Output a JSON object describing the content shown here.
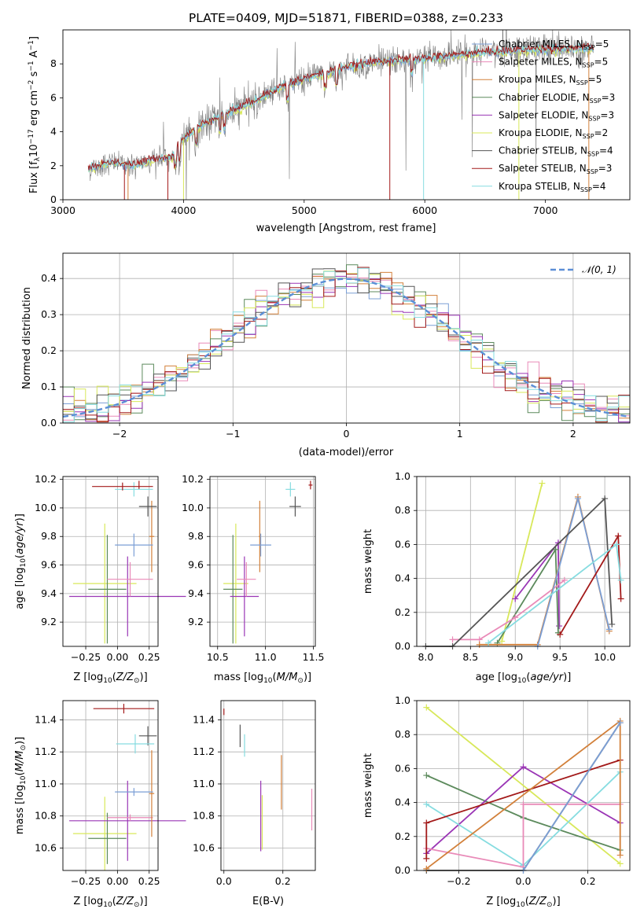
{
  "colors": {
    "Chabrier MILES": "#7b9fd6",
    "Salpeter MILES": "#e98ab8",
    "Kroupa MILES": "#d2803a",
    "Chabrier ELODIE": "#5c8a5c",
    "Salpeter ELODIE": "#9a35b5",
    "Kroupa ELODIE": "#d8e85a",
    "Chabrier STELIB": "#555555",
    "Salpeter STELIB": "#a31a1a",
    "Kroupa STELIB": "#86dce0",
    "gauss": "#5b8ed6",
    "observed": "#7a7a7a"
  },
  "chart_data": [
    {
      "id": "spectrum",
      "type": "line",
      "title": "PLATE=0409, MJD=51871, FIBERID=0388, z=0.233",
      "xlabel": "wavelength [Angstrom, rest frame]",
      "ylabel": "Flux [f$_\\lambda$10$^{-17}$ erg cm$^{-2}$ s$^{-1}$ A$^{-1}$]",
      "xlim": [
        3000,
        7700
      ],
      "ylim": [
        0,
        10
      ],
      "xticks": [
        "3000",
        "4000",
        "5000",
        "6000",
        "7000"
      ],
      "yticks": [
        "0",
        "2",
        "4",
        "6",
        "8"
      ],
      "grid": false,
      "legend_position": "top-right",
      "legend": [
        {
          "label": "Chabrier MILES, N",
          "sub": "SSP",
          "rest": "=5"
        },
        {
          "label": "Salpeter MILES, N",
          "sub": "SSP",
          "rest": "=5"
        },
        {
          "label": "Kroupa MILES, N",
          "sub": "SSP",
          "rest": "=5"
        },
        {
          "label": "Chabrier ELODIE, N",
          "sub": "SSP",
          "rest": "=3"
        },
        {
          "label": "Salpeter ELODIE, N",
          "sub": "SSP",
          "rest": "=3"
        },
        {
          "label": "Kroupa ELODIE, N",
          "sub": "SSP",
          "rest": "=2"
        },
        {
          "label": "Chabrier STELIB, N",
          "sub": "SSP",
          "rest": "=4"
        },
        {
          "label": "Salpeter STELIB, N",
          "sub": "SSP",
          "rest": "=3"
        },
        {
          "label": "Kroupa STELIB, N",
          "sub": "SSP",
          "rest": "=4"
        }
      ],
      "continuum": [
        [
          3210,
          1.8
        ],
        [
          3400,
          2.2
        ],
        [
          3600,
          2.0
        ],
        [
          3750,
          2.4
        ],
        [
          3900,
          2.5
        ],
        [
          4000,
          3.6
        ],
        [
          4200,
          4.6
        ],
        [
          4500,
          5.5
        ],
        [
          4800,
          6.6
        ],
        [
          5000,
          7.1
        ],
        [
          5300,
          7.7
        ],
        [
          5600,
          8.1
        ],
        [
          6000,
          8.3
        ],
        [
          6400,
          8.6
        ],
        [
          6800,
          8.8
        ],
        [
          7200,
          8.9
        ],
        [
          7400,
          8.9
        ]
      ]
    },
    {
      "id": "residuals",
      "type": "line",
      "xlabel": "(data-model)/error",
      "ylabel": "Normed distribution",
      "xlim": [
        -2.5,
        2.5
      ],
      "ylim": [
        0,
        0.47
      ],
      "xticks": [
        "−2",
        "−1",
        "0",
        "1",
        "2"
      ],
      "yticks": [
        "0.0",
        "0.1",
        "0.2",
        "0.3",
        "0.4"
      ],
      "grid": true,
      "legend_position": "top-right",
      "legend": [
        {
          "label": "$\\mathcal{N}(0,1)$",
          "display": "𝒩(0, 1)"
        }
      ],
      "bin_width": 0.1
    },
    {
      "id": "age_vs_Z",
      "type": "scatter",
      "xlabel": "Z [log$_{10}$(Z/Z$_\\odot$)]",
      "ylabel": "age  [log$_{10}$(age/yr)]",
      "xlim": [
        -0.43,
        0.32
      ],
      "ylim": [
        9.03,
        10.22
      ],
      "xticks": [
        "−0.25",
        "0.00",
        "0.25"
      ],
      "yticks": [
        "9.2",
        "9.4",
        "9.6",
        "9.8",
        "10.0",
        "10.2"
      ],
      "grid": true,
      "points": [
        {
          "model": "Kroupa ELODIE",
          "x": -0.1,
          "xerr": 0.25,
          "y": 9.47,
          "yerr": 0.42
        },
        {
          "model": "Chabrier ELODIE",
          "x": -0.08,
          "xerr": 0.15,
          "y": 9.43,
          "yerr": 0.38
        },
        {
          "model": "Salpeter ELODIE",
          "x": 0.08,
          "xerr": 0.46,
          "y": 9.38,
          "yerr": 0.28
        },
        {
          "model": "Salpeter MILES",
          "x": 0.1,
          "xerr": 0.18,
          "y": 9.5,
          "yerr": 0.12
        },
        {
          "model": "Kroupa MILES",
          "x": 0.27,
          "xerr": 0.02,
          "y": 9.8,
          "yerr": 0.25
        },
        {
          "model": "Chabrier MILES",
          "x": 0.13,
          "xerr": 0.15,
          "y": 9.74,
          "yerr": 0.08
        },
        {
          "model": "Chabrier STELIB",
          "x": 0.24,
          "xerr": 0.07,
          "y": 10.01,
          "yerr": 0.07
        },
        {
          "model": "Salpeter STELIB",
          "x": 0.17,
          "xerr": 0.0,
          "y": 10.16,
          "yerr": 0.03
        },
        {
          "model": "Kroupa STELIB",
          "x": 0.13,
          "xerr": 0.15,
          "y": 10.13,
          "yerr": 0.05
        },
        {
          "model": "Salpeter STELIB",
          "x": 0.04,
          "xerr": 0.24,
          "y": 10.15,
          "yerr": 0.0
        }
      ]
    },
    {
      "id": "age_vs_mass",
      "type": "scatter",
      "xlabel": "mass [log$_{10}$(M/M$_\\odot$)]",
      "ylabel": "",
      "xlim": [
        10.42,
        11.52
      ],
      "ylim": [
        9.03,
        10.22
      ],
      "xticks": [
        "10.5",
        "11.0",
        "11.5"
      ],
      "yticks": [
        "9.2",
        "9.4",
        "9.6",
        "9.8",
        "10.0",
        "10.2"
      ],
      "grid": true,
      "points": [
        {
          "model": "Kroupa ELODIE",
          "x": 10.69,
          "xerr": 0.13,
          "y": 9.47,
          "yerr": 0.42
        },
        {
          "model": "Chabrier ELODIE",
          "x": 10.66,
          "xerr": 0.1,
          "y": 9.43,
          "yerr": 0.38
        },
        {
          "model": "Salpeter ELODIE",
          "x": 10.78,
          "xerr": 0.15,
          "y": 9.38,
          "yerr": 0.28
        },
        {
          "model": "Salpeter MILES",
          "x": 10.8,
          "xerr": 0.1,
          "y": 9.5,
          "yerr": 0.12
        },
        {
          "model": "Kroupa MILES",
          "x": 10.94,
          "xerr": 0.01,
          "y": 9.8,
          "yerr": 0.25
        },
        {
          "model": "Chabrier MILES",
          "x": 10.95,
          "xerr": 0.11,
          "y": 9.74,
          "yerr": 0.08
        },
        {
          "model": "Chabrier STELIB",
          "x": 11.31,
          "xerr": 0.06,
          "y": 10.01,
          "yerr": 0.07
        },
        {
          "model": "Salpeter STELIB",
          "x": 11.47,
          "xerr": 0.02,
          "y": 10.16,
          "yerr": 0.03
        },
        {
          "model": "Kroupa STELIB",
          "x": 11.26,
          "xerr": 0.05,
          "y": 10.13,
          "yerr": 0.05
        }
      ]
    },
    {
      "id": "age_weights",
      "type": "line",
      "xlabel": "age  [log$_{10}$(age/yr)]",
      "ylabel": "mass weight",
      "xlim": [
        7.9,
        10.28
      ],
      "ylim": [
        0,
        1
      ],
      "xticks": [
        "8.0",
        "8.5",
        "9.0",
        "9.5",
        "10.0"
      ],
      "yticks": [
        "0.0",
        "0.2",
        "0.4",
        "0.6",
        "0.8",
        "1.0"
      ],
      "grid": true,
      "series": [
        {
          "model": "Kroupa ELODIE",
          "x": [
            8.85,
            9.3
          ],
          "y": [
            0.03,
            0.96
          ]
        },
        {
          "model": "Salpeter ELODIE",
          "x": [
            9.0,
            9.48,
            9.49
          ],
          "y": [
            0.28,
            0.61,
            0.12
          ]
        },
        {
          "model": "Chabrier ELODIE",
          "x": [
            8.8,
            9.45,
            9.48
          ],
          "y": [
            0.02,
            0.57,
            0.08
          ]
        },
        {
          "model": "Salpeter MILES",
          "x": [
            8.3,
            8.6,
            9.0,
            9.55
          ],
          "y": [
            0.04,
            0.04,
            0.17,
            0.39
          ]
        },
        {
          "model": "Kroupa MILES",
          "x": [
            8.6,
            9.25,
            9.7,
            10.05
          ],
          "y": [
            0.01,
            0.01,
            0.88,
            0.09
          ]
        },
        {
          "model": "Chabrier MILES",
          "x": [
            9.25,
            9.7,
            10.05
          ],
          "y": [
            0.0,
            0.87,
            0.1
          ]
        },
        {
          "model": "Chabrier STELIB",
          "x": [
            8.0,
            8.3,
            10.0,
            10.08
          ],
          "y": [
            0.0,
            0.0,
            0.87,
            0.13
          ]
        },
        {
          "model": "Salpeter STELIB",
          "x": [
            9.5,
            10.15,
            10.18
          ],
          "y": [
            0.07,
            0.65,
            0.28
          ]
        },
        {
          "model": "Kroupa STELIB",
          "x": [
            8.7,
            10.13,
            10.18
          ],
          "y": [
            0.02,
            0.6,
            0.39
          ]
        }
      ]
    },
    {
      "id": "mass_vs_Z",
      "type": "scatter",
      "xlabel": "Z [log$_{10}$(Z/Z$_\\odot$)]",
      "ylabel": "mass [log$_{10}$(M/M$_\\odot$)]",
      "xlim": [
        -0.43,
        0.32
      ],
      "ylim": [
        10.46,
        11.52
      ],
      "xticks": [
        "−0.25",
        "0.00",
        "0.25"
      ],
      "yticks": [
        "10.6",
        "10.8",
        "11.0",
        "11.2",
        "11.4"
      ],
      "grid": true,
      "points": [
        {
          "model": "Kroupa ELODIE",
          "x": -0.1,
          "xerr": 0.25,
          "y": 10.69,
          "yerr": 0.23
        },
        {
          "model": "Chabrier ELODIE",
          "x": -0.08,
          "xerr": 0.15,
          "y": 10.66,
          "yerr": 0.16
        },
        {
          "model": "Salpeter ELODIE",
          "x": 0.08,
          "xerr": 0.46,
          "y": 10.77,
          "yerr": 0.25
        },
        {
          "model": "Salpeter MILES",
          "x": 0.1,
          "xerr": 0.18,
          "y": 10.79,
          "yerr": 0.02
        },
        {
          "model": "Kroupa MILES",
          "x": 0.27,
          "xerr": 0.02,
          "y": 10.94,
          "yerr": 0.27
        },
        {
          "model": "Chabrier MILES",
          "x": 0.13,
          "xerr": 0.15,
          "y": 10.95,
          "yerr": 0.0
        },
        {
          "model": "Chabrier STELIB",
          "x": 0.24,
          "xerr": 0.07,
          "y": 11.3,
          "yerr": 0.06
        },
        {
          "model": "Salpeter STELIB",
          "x": 0.05,
          "xerr": 0.24,
          "y": 11.47,
          "yerr": 0.03
        },
        {
          "model": "Kroupa STELIB",
          "x": 0.14,
          "xerr": 0.15,
          "y": 11.25,
          "yerr": 0.06
        }
      ]
    },
    {
      "id": "mass_vs_ebv",
      "type": "scatter",
      "xlabel": "E(B-V)",
      "ylabel": "",
      "xlim": [
        -0.01,
        0.31
      ],
      "ylim": [
        10.46,
        11.52
      ],
      "xticks": [
        "0.0",
        "0.2"
      ],
      "yticks": [
        "10.6",
        "10.8",
        "11.0",
        "11.2",
        "11.4"
      ],
      "grid": true,
      "points": [
        {
          "model": "Salpeter STELIB",
          "x": 0.0,
          "xerr": 0.0,
          "y": 11.45,
          "yerr": 0.02
        },
        {
          "model": "Chabrier STELIB",
          "x": 0.055,
          "xerr": 0.0,
          "y": 11.3,
          "yerr": 0.07
        },
        {
          "model": "Kroupa STELIB",
          "x": 0.07,
          "xerr": 0.0,
          "y": 11.24,
          "yerr": 0.07
        },
        {
          "model": "Salpeter ELODIE",
          "x": 0.125,
          "xerr": 0.0,
          "y": 10.8,
          "yerr": 0.22
        },
        {
          "model": "Kroupa ELODIE",
          "x": 0.13,
          "xerr": 0.0,
          "y": 10.76,
          "yerr": 0.17
        },
        {
          "model": "Kroupa MILES",
          "x": 0.195,
          "xerr": 0.0,
          "y": 11.01,
          "yerr": 0.17
        },
        {
          "model": "Salpeter MILES",
          "x": 0.298,
          "xerr": 0.0,
          "y": 10.84,
          "yerr": 0.13
        }
      ]
    },
    {
      "id": "Z_weights",
      "type": "line",
      "xlabel": "Z [log$_{10}$(Z/Z$_\\odot$)]",
      "ylabel": "mass weight",
      "xlim": [
        -0.33,
        0.33
      ],
      "ylim": [
        0,
        1
      ],
      "xticks": [
        "−0.2",
        "0.0",
        "0.2"
      ],
      "yticks": [
        "0.0",
        "0.2",
        "0.4",
        "0.6",
        "0.8",
        "1.0"
      ],
      "grid": true,
      "series": [
        {
          "model": "Kroupa ELODIE",
          "x": [
            -0.3,
            0.3
          ],
          "y": [
            0.96,
            0.04
          ]
        },
        {
          "model": "Chabrier ELODIE",
          "x": [
            -0.3,
            0.0,
            0.3
          ],
          "y": [
            0.56,
            0.31,
            0.12
          ]
        },
        {
          "model": "Salpeter ELODIE",
          "x": [
            -0.3,
            0.0,
            0.3
          ],
          "y": [
            0.1,
            0.61,
            0.28
          ]
        },
        {
          "model": "Kroupa STELIB",
          "x": [
            -0.3,
            0.0,
            0.3
          ],
          "y": [
            0.39,
            0.03,
            0.58
          ]
        },
        {
          "model": "Salpeter MILES",
          "x": [
            -0.3,
            0.0,
            0.0,
            0.3
          ],
          "y": [
            0.13,
            0.02,
            0.39,
            0.39
          ]
        },
        {
          "model": "Salpeter STELIB",
          "x": [
            -0.3,
            -0.3,
            0.3
          ],
          "y": [
            0.07,
            0.28,
            0.65
          ]
        },
        {
          "model": "Chabrier STELIB",
          "x": [
            -0.3,
            0.0,
            0.3
          ],
          "y": [
            0.0,
            0.0,
            0.87
          ]
        },
        {
          "model": "Kroupa MILES",
          "x": [
            -0.3,
            0.3,
            0.3
          ],
          "y": [
            0.01,
            0.88,
            0.09
          ]
        },
        {
          "model": "Chabrier MILES",
          "x": [
            0.0,
            0.3
          ],
          "y": [
            0.0,
            0.87
          ]
        }
      ]
    }
  ]
}
